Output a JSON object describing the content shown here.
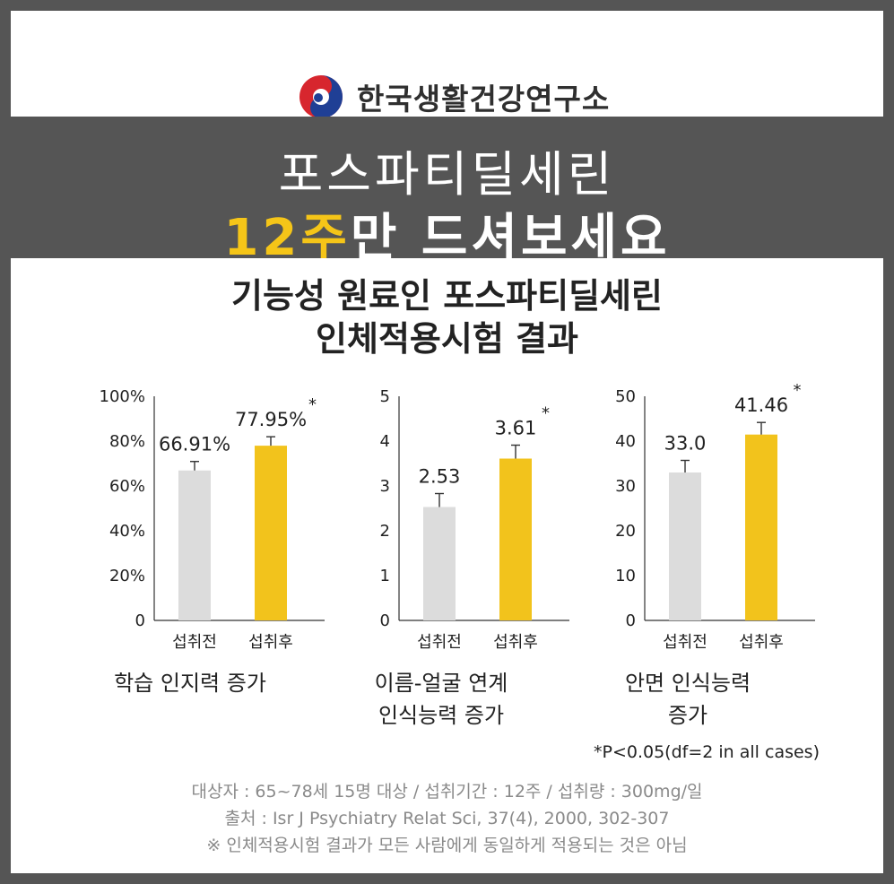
{
  "brand": {
    "name": "한국생활건강연구소",
    "logo_icon": "taeguk-swirl-logo-icon",
    "colors": {
      "red": "#d7262e",
      "blue": "#1f3f95"
    }
  },
  "headline": {
    "line1": "포스파티딜세린",
    "line2_highlight": "12주",
    "line2_rest": "만 드셔보세요",
    "highlight_color": "#f5c518"
  },
  "main_title": {
    "line1": "기능성 원료인 포스파티딜세린",
    "line2": "인체적용시험 결과"
  },
  "colors": {
    "before_bar": "#dcdcdc",
    "after_bar": "#f2c31c"
  },
  "chart_data": [
    {
      "type": "bar",
      "categories": [
        "섭취전",
        "섭취후"
      ],
      "values": [
        66.91,
        77.95
      ],
      "value_labels": [
        "66.91%",
        "77.95%"
      ],
      "significance": [
        false,
        true
      ],
      "error": [
        4,
        4
      ],
      "ylim": [
        0,
        100
      ],
      "yticks": [
        0,
        20,
        40,
        60,
        80,
        100
      ],
      "ytick_labels": [
        "0",
        "20%",
        "40%",
        "60%",
        "80%",
        "100%"
      ],
      "caption": [
        "학습 인지력 증가"
      ]
    },
    {
      "type": "bar",
      "categories": [
        "섭취전",
        "섭취후"
      ],
      "values": [
        2.53,
        3.61
      ],
      "value_labels": [
        "2.53",
        "3.61"
      ],
      "significance": [
        false,
        true
      ],
      "error": [
        0.3,
        0.3
      ],
      "ylim": [
        0,
        5
      ],
      "yticks": [
        0,
        1,
        2,
        3,
        4,
        5
      ],
      "ytick_labels": [
        "0",
        "1",
        "2",
        "3",
        "4",
        "5"
      ],
      "caption": [
        "이름-얼굴 연계",
        "인식능력 증가"
      ]
    },
    {
      "type": "bar",
      "categories": [
        "섭취전",
        "섭취후"
      ],
      "values": [
        33.0,
        41.46
      ],
      "value_labels": [
        "33.0",
        "41.46"
      ],
      "significance": [
        false,
        true
      ],
      "error": [
        2.7,
        2.7
      ],
      "ylim": [
        0,
        50
      ],
      "yticks": [
        0,
        10,
        20,
        30,
        40,
        50
      ],
      "ytick_labels": [
        "0",
        "10",
        "20",
        "30",
        "40",
        "50"
      ],
      "caption": [
        "안면 인식능력",
        "증가"
      ]
    }
  ],
  "significance_marker": "*",
  "p_note": "*P<0.05(df=2 in all cases)",
  "footnotes": [
    "대상자 : 65~78세 15명 대상  /  섭취기간 : 12주  /  섭취량 : 300mg/일",
    "출처 : Isr J Psychiatry Relat Sci, 37(4), 2000, 302-307",
    "※ 인체적용시험 결과가 모든 사람에게 동일하게 적용되는 것은 아님"
  ]
}
